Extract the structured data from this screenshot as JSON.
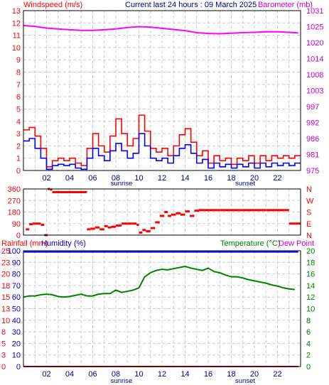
{
  "header": {
    "windspeed_label": "Windspeed (m/s)",
    "title": "Current last 24 hours : 09 March 2025",
    "barometer_label": "Barometer (mb)"
  },
  "middle_header": {
    "rainfall_label": "Rainfall (mm)",
    "humidity_label": "Humidity (%)",
    "temperature_label": "Temperature (°C)",
    "dewpoint_label": "Dew Point"
  },
  "markers": {
    "sunrise": "sunrise",
    "sunset": "sunset"
  },
  "colors": {
    "wind_gust": "#ff0000",
    "wind_avg": "#0000ff",
    "barometer": "#ff00ff",
    "direction": "#ff0000",
    "temperature": "#008000",
    "humidity": "#0000ff",
    "rainfall": "#ff0000",
    "grid": "#cccccc"
  },
  "chart_data": [
    {
      "type": "line",
      "panel": "wind-barometer",
      "x_unit": "hour",
      "x_ticks": [
        "02",
        "04",
        "06",
        "08",
        "10",
        "12",
        "14",
        "16",
        "18",
        "20",
        "22"
      ],
      "y_left_ticks": [
        "0",
        "1",
        "2",
        "3",
        "4",
        "5",
        "6",
        "7",
        "8",
        "9",
        "10",
        "11",
        "12",
        "13"
      ],
      "y_right_ticks": [
        "975",
        "981",
        "986",
        "992",
        "997",
        "1003",
        "1008",
        "1014",
        "1020",
        "1025",
        "1031"
      ],
      "ylim_left": [
        0,
        13
      ],
      "ylim_right": [
        975,
        1031
      ],
      "series": [
        {
          "name": "gust",
          "axis": "left",
          "x": [
            0,
            0.5,
            1,
            1.5,
            2,
            2.5,
            3,
            3.5,
            4,
            4.5,
            5,
            5.5,
            6,
            6.5,
            7,
            7.5,
            8,
            8.5,
            9,
            9.5,
            10,
            10.5,
            11,
            11.5,
            12,
            12.5,
            13,
            13.5,
            14,
            14.5,
            15,
            15.5,
            16,
            16.5,
            17,
            17.5,
            18,
            18.5,
            19,
            19.5,
            20,
            20.5,
            21,
            21.5,
            22,
            22.5,
            23,
            23.5
          ],
          "values": [
            3.3,
            3.5,
            2.8,
            1.8,
            0.3,
            0.8,
            1.0,
            0.8,
            1.0,
            0.6,
            0.4,
            1.8,
            3.0,
            2.0,
            1.5,
            2.8,
            4.2,
            3.0,
            2.0,
            2.6,
            4.5,
            3.2,
            1.8,
            1.5,
            1.8,
            1.2,
            2.0,
            2.9,
            3.4,
            2.3,
            1.2,
            1.6,
            0.6,
            1.2,
            0.8,
            1.0,
            0.5,
            1.0,
            0.8,
            1.2,
            0.6,
            1.2,
            0.8,
            1.2,
            1.0,
            1.2,
            1.0,
            1.2
          ]
        },
        {
          "name": "average",
          "axis": "left",
          "x": [
            0,
            0.5,
            1,
            1.5,
            2,
            2.5,
            3,
            3.5,
            4,
            4.5,
            5,
            5.5,
            6,
            6.5,
            7,
            7.5,
            8,
            8.5,
            9,
            9.5,
            10,
            10.5,
            11,
            11.5,
            12,
            12.5,
            13,
            13.5,
            14,
            14.5,
            15,
            15.5,
            16,
            16.5,
            17,
            17.5,
            18,
            18.5,
            19,
            19.5,
            20,
            20.5,
            21,
            21.5,
            22,
            22.5,
            23,
            23.5
          ],
          "values": [
            2.4,
            2.6,
            1.8,
            1.0,
            0.1,
            0.4,
            0.5,
            0.4,
            0.5,
            0.2,
            0.1,
            1.0,
            1.8,
            1.2,
            0.8,
            1.6,
            2.2,
            1.6,
            1.0,
            1.4,
            3.0,
            2.0,
            1.0,
            0.8,
            1.0,
            0.6,
            1.2,
            1.8,
            2.1,
            1.4,
            0.6,
            0.9,
            0.2,
            0.6,
            0.3,
            0.5,
            0.2,
            0.5,
            0.3,
            0.6,
            0.2,
            0.6,
            0.3,
            0.6,
            0.4,
            0.6,
            0.4,
            0.6
          ]
        },
        {
          "name": "barometer",
          "axis": "right",
          "x": [
            0,
            1,
            2,
            3,
            4,
            5,
            6,
            7,
            8,
            9,
            10,
            11,
            12,
            13,
            14,
            15,
            16,
            17,
            18,
            19,
            20,
            21,
            22,
            23,
            23.8
          ],
          "values": [
            1025.8,
            1025.5,
            1024.9,
            1024.6,
            1024.3,
            1024.1,
            1024.1,
            1024.3,
            1024.6,
            1025.1,
            1025.4,
            1025.2,
            1024.8,
            1024.4,
            1024.0,
            1023.3,
            1023.0,
            1022.9,
            1023.1,
            1023.3,
            1023.4,
            1023.6,
            1023.6,
            1023.4,
            1023.2
          ]
        }
      ]
    },
    {
      "type": "scatter",
      "panel": "wind-direction",
      "x_unit": "hour",
      "y_left_ticks": [
        "0",
        "90",
        "180",
        "270",
        "360"
      ],
      "y_right_ticks": [
        "N",
        "E",
        "S",
        "W",
        "N"
      ],
      "ylim": [
        0,
        360
      ],
      "series": [
        {
          "name": "direction",
          "x": [
            0.2,
            0.5,
            0.8,
            1.2,
            1.5,
            1.8,
            2.1,
            2.3,
            2.5,
            2.8,
            3.2,
            3.6,
            4.0,
            4.4,
            4.8,
            5.2,
            5.5,
            5.8,
            6.2,
            6.6,
            7.0,
            7.3,
            7.6,
            8.0,
            8.5,
            9.0,
            9.4,
            9.8,
            10.0,
            10.3,
            10.6,
            11.0,
            11.4,
            11.8,
            12.2,
            12.5,
            12.8,
            13.2,
            13.6,
            14.0,
            14.4,
            14.8,
            15.2,
            15.6,
            16.0,
            17.0,
            18.0,
            19.0,
            20.0,
            21.0,
            22.0,
            22.6,
            23.0,
            23.5
          ],
          "values": [
            45,
            85,
            90,
            90,
            80,
            0,
            360,
            355,
            335,
            335,
            335,
            335,
            335,
            335,
            335,
            335,
            45,
            50,
            60,
            45,
            70,
            60,
            65,
            75,
            90,
            90,
            90,
            80,
            20,
            40,
            30,
            55,
            100,
            150,
            180,
            150,
            160,
            170,
            160,
            185,
            150,
            190,
            195,
            195,
            195,
            195,
            195,
            195,
            195,
            195,
            195,
            195,
            90,
            90
          ]
        }
      ]
    },
    {
      "type": "line",
      "panel": "temperature-humidity",
      "x_unit": "hour",
      "y_left_ticks": [
        "0",
        "10",
        "20",
        "30",
        "40",
        "50",
        "60",
        "70",
        "80",
        "90",
        "100"
      ],
      "y_left_ticks_rain": [
        "0",
        "3",
        "5",
        "8",
        "10",
        "13",
        "15",
        "18",
        "20",
        "23",
        "25"
      ],
      "y_right_ticks": [
        "0",
        "2",
        "4",
        "6",
        "8",
        "10",
        "12",
        "14",
        "16",
        "18",
        "20"
      ],
      "ylim_left": [
        0,
        100
      ],
      "ylim_right": [
        0,
        20
      ],
      "series": [
        {
          "name": "temperature",
          "axis": "right",
          "x": [
            0,
            0.5,
            1,
            1.5,
            2,
            2.5,
            3,
            3.5,
            4,
            4.5,
            5,
            5.5,
            6,
            6.5,
            7,
            7.5,
            8,
            8.5,
            9,
            9.5,
            10,
            10.5,
            11,
            11.5,
            12,
            12.5,
            13,
            13.5,
            14,
            14.5,
            15,
            15.5,
            16,
            16.5,
            17,
            17.5,
            18,
            18.5,
            19,
            19.5,
            20,
            20.5,
            21,
            21.5,
            22,
            22.5,
            23,
            23.5
          ],
          "values": [
            12.0,
            12.2,
            12.2,
            12.4,
            12.5,
            12.4,
            12.1,
            12.0,
            12.1,
            12.3,
            12.5,
            12.2,
            12.2,
            12.5,
            12.6,
            12.6,
            13.2,
            12.8,
            13.0,
            13.2,
            13.6,
            15.5,
            16.2,
            16.6,
            16.8,
            16.7,
            16.9,
            17.1,
            17.3,
            17.0,
            16.8,
            16.6,
            17.0,
            16.4,
            16.2,
            15.8,
            15.5,
            15.5,
            15.3,
            15.0,
            14.8,
            14.6,
            14.4,
            14.1,
            13.9,
            13.6,
            13.4,
            13.3
          ]
        },
        {
          "name": "humidity",
          "axis": "left",
          "x": [
            0,
            23.8
          ],
          "values": [
            99,
            99
          ]
        },
        {
          "name": "rainfall",
          "axis": "left",
          "x": [
            0,
            23.8
          ],
          "values": [
            0,
            0
          ]
        }
      ]
    }
  ]
}
